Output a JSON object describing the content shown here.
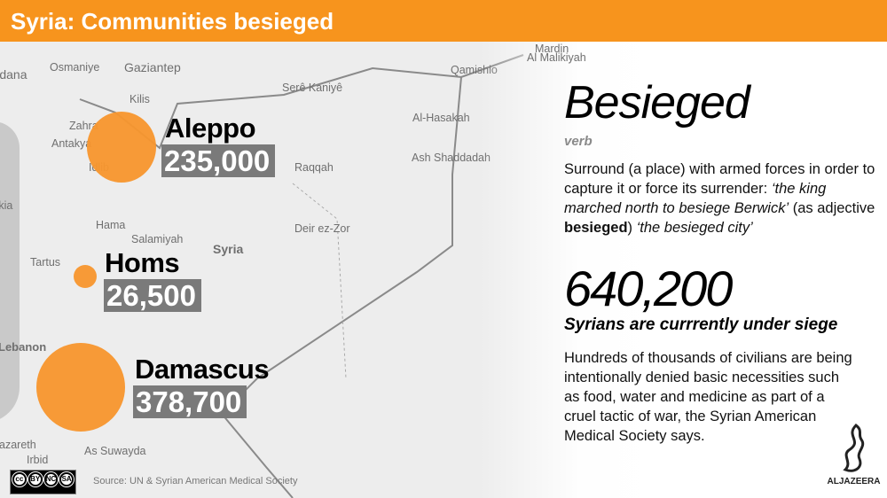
{
  "header": {
    "title": "Syria: Communities besieged"
  },
  "map_labels": [
    "Mardin",
    "Osmaniye",
    "Gaziantep",
    "Kilis",
    "Serê Kaniyê",
    "Qamishlo",
    "Al Malikiyah",
    "Adana",
    "Zahra",
    "Antakya",
    "Idlib",
    "Raqqah",
    "Al-Hasakah",
    "Ash Shaddadah",
    "Deir ez-Zor",
    "Hama",
    "Salamiyah",
    "Syria",
    "Tartus",
    "Latakia",
    "Lebanon",
    "Nazareth",
    "Irbid",
    "As Suwayda"
  ],
  "cities": [
    {
      "name": "Aleppo",
      "besieged": "235,000"
    },
    {
      "name": "Homs",
      "besieged": "26,500"
    },
    {
      "name": "Damascus",
      "besieged": "378,700"
    }
  ],
  "definition": {
    "word": "Besieged",
    "part_of_speech": "verb",
    "line1": "Surround (a place) with armed forces in order to capture it or force its surrender: ",
    "example1": "‘the king marched north to besiege Berwick’",
    "line2": " (as adjective ",
    "bold": "besieged",
    "line3": ") ",
    "example2": "‘the besieged city’"
  },
  "stat": {
    "total": "640,200",
    "caption": "Syrians are currrently under siege",
    "text": "Hundreds of thousands of civilians are being intentionally denied basic necessities such as food, water and medicine as part of a cruel tactic of war, the Syrian American Medical Society says."
  },
  "footer": {
    "source": "Source: UN & Syrian American Medical Society",
    "license": [
      "BY",
      "NC",
      "SA"
    ],
    "logo": "ALJAZEERA"
  },
  "colors": {
    "accent": "#f7941d",
    "circle": "#f7962f",
    "number_box": "#7a7a7a"
  }
}
